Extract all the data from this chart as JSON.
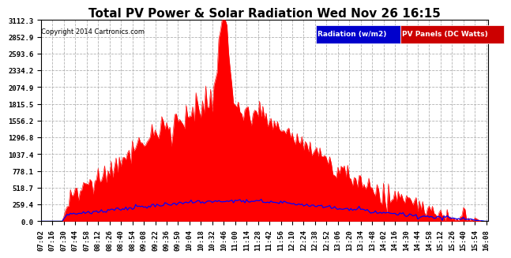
{
  "title": "Total PV Power & Solar Radiation Wed Nov 26 16:15",
  "copyright": "Copyright 2014 Cartronics.com",
  "legend_radiation": "Radiation (w/m2)",
  "legend_pv": "PV Panels (DC Watts)",
  "legend_radiation_bg": "#0000cc",
  "legend_pv_bg": "#cc0000",
  "background_color": "#ffffff",
  "plot_bg_color": "#ffffff",
  "grid_color": "#aaaaaa",
  "pv_color": "#ff0000",
  "radiation_color": "#0000ff",
  "y_min": 0.0,
  "y_max": 3112.3,
  "y_ticks": [
    0.0,
    259.4,
    518.7,
    778.1,
    1037.4,
    1296.8,
    1556.2,
    1815.5,
    2074.9,
    2334.2,
    2593.6,
    2852.9,
    3112.3
  ],
  "title_fontsize": 11,
  "tick_fontsize": 6.5,
  "copyright_fontsize": 6
}
